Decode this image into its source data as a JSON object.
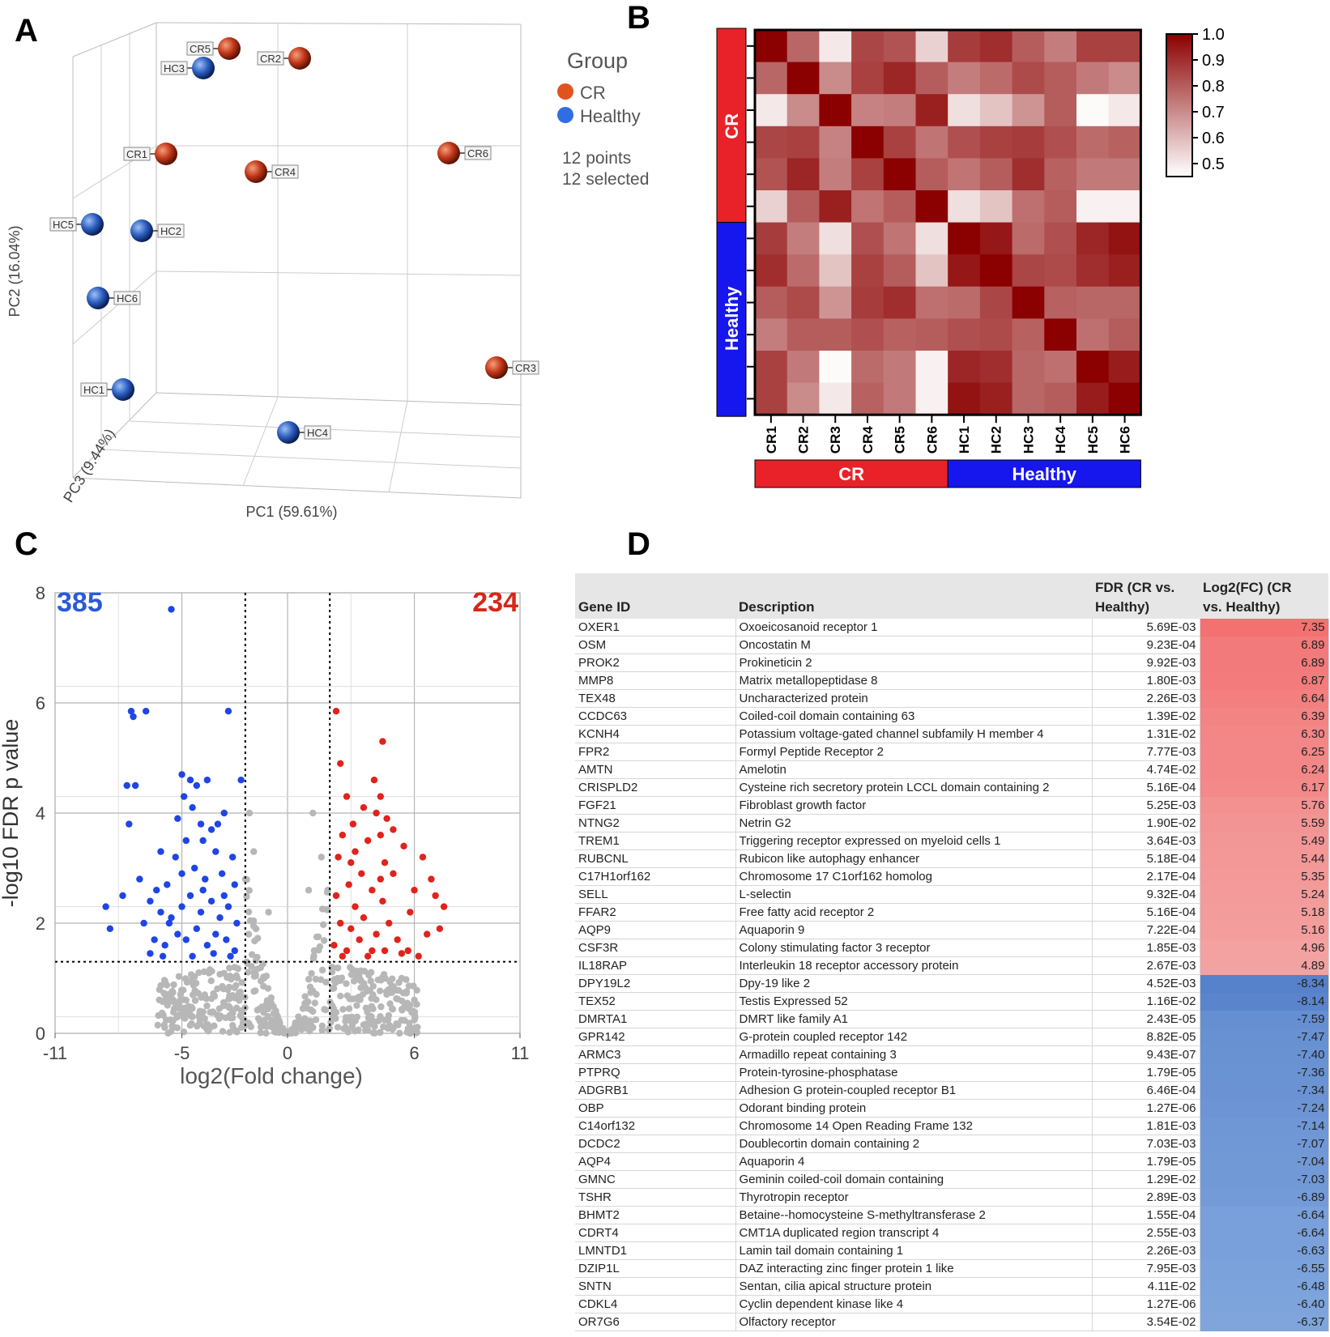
{
  "panel_letters": {
    "a": "A",
    "b": "B",
    "c": "C",
    "d": "D"
  },
  "colors": {
    "cr": "#c9391c",
    "healthy": "#2f5fbf",
    "heat_high": "#8b0000",
    "heat_low": "#ffffff",
    "bar_cr": "#e82228",
    "bar_healthy": "#1616ee",
    "up": "#e0231b",
    "down": "#1f45e6",
    "ns": "#b7b7b7",
    "fc_pos": "#f08080",
    "fc_neg": "#6f9bd6"
  },
  "chart_data": [
    {
      "type": "scatter",
      "panel": "A",
      "title": "",
      "xlabel": "PC1 (59.61%)",
      "ylabel": "PC2 (16.04%)",
      "zlabel": "PC3 (9.44%)",
      "legend": {
        "title": "Group",
        "entries": [
          "CR",
          "Healthy"
        ],
        "count_text": "12 points",
        "selected_text": "12 selected",
        "placement": "right"
      },
      "points": [
        {
          "label": "CR1",
          "group": "CR"
        },
        {
          "label": "CR2",
          "group": "CR"
        },
        {
          "label": "CR3",
          "group": "CR"
        },
        {
          "label": "CR4",
          "group": "CR"
        },
        {
          "label": "CR5",
          "group": "CR"
        },
        {
          "label": "CR6",
          "group": "CR"
        },
        {
          "label": "HC1",
          "group": "Healthy"
        },
        {
          "label": "HC2",
          "group": "Healthy"
        },
        {
          "label": "HC3",
          "group": "Healthy"
        },
        {
          "label": "HC4",
          "group": "Healthy"
        },
        {
          "label": "HC5",
          "group": "Healthy"
        },
        {
          "label": "HC6",
          "group": "Healthy"
        }
      ]
    },
    {
      "type": "heatmap",
      "panel": "B",
      "row_labels": [
        "CR1",
        "CR2",
        "CR3",
        "CR4",
        "CR5",
        "CR6",
        "HC1",
        "HC2",
        "HC3",
        "HC4",
        "HC5",
        "HC6"
      ],
      "col_labels": [
        "CR1",
        "CR2",
        "CR3",
        "CR4",
        "CR5",
        "CR6",
        "HC1",
        "HC2",
        "HC3",
        "HC4",
        "HC5",
        "HC6"
      ],
      "group_labels": [
        "CR",
        "Healthy"
      ],
      "colorbar": {
        "min": 0.45,
        "max": 1.0,
        "ticks": [
          "1.0",
          "0.9",
          "0.8",
          "0.7",
          "0.6",
          "0.5"
        ]
      },
      "values": [
        [
          1.0,
          0.78,
          0.5,
          0.85,
          0.82,
          0.55,
          0.87,
          0.9,
          0.8,
          0.73,
          0.86,
          0.86
        ],
        [
          0.78,
          1.0,
          0.7,
          0.86,
          0.92,
          0.8,
          0.73,
          0.77,
          0.84,
          0.8,
          0.74,
          0.7
        ],
        [
          0.5,
          0.7,
          1.0,
          0.72,
          0.73,
          0.93,
          0.52,
          0.58,
          0.68,
          0.8,
          0.46,
          0.5
        ],
        [
          0.85,
          0.86,
          0.72,
          1.0,
          0.86,
          0.75,
          0.83,
          0.86,
          0.87,
          0.83,
          0.77,
          0.79
        ],
        [
          0.82,
          0.92,
          0.73,
          0.86,
          1.0,
          0.8,
          0.75,
          0.8,
          0.9,
          0.79,
          0.74,
          0.74
        ],
        [
          0.55,
          0.8,
          0.93,
          0.75,
          0.8,
          1.0,
          0.52,
          0.58,
          0.76,
          0.8,
          0.48,
          0.48
        ],
        [
          0.87,
          0.73,
          0.52,
          0.83,
          0.75,
          0.52,
          1.0,
          0.95,
          0.77,
          0.83,
          0.92,
          0.96
        ],
        [
          0.9,
          0.77,
          0.58,
          0.86,
          0.8,
          0.58,
          0.95,
          1.0,
          0.85,
          0.84,
          0.9,
          0.93
        ],
        [
          0.8,
          0.84,
          0.68,
          0.87,
          0.9,
          0.76,
          0.77,
          0.85,
          1.0,
          0.79,
          0.78,
          0.78
        ],
        [
          0.73,
          0.8,
          0.8,
          0.83,
          0.79,
          0.8,
          0.83,
          0.84,
          0.79,
          1.0,
          0.76,
          0.8
        ],
        [
          0.86,
          0.74,
          0.46,
          0.77,
          0.74,
          0.48,
          0.92,
          0.9,
          0.78,
          0.76,
          1.0,
          0.94
        ],
        [
          0.86,
          0.7,
          0.5,
          0.79,
          0.74,
          0.48,
          0.96,
          0.93,
          0.78,
          0.8,
          0.94,
          1.0
        ]
      ]
    },
    {
      "type": "scatter",
      "panel": "C",
      "xlabel": "log2(Fold change)",
      "ylabel": "-log10 FDR p value",
      "xlim": [
        -11,
        11
      ],
      "ylim": [
        0,
        8
      ],
      "xticks": [
        "-11",
        "-5",
        "0",
        "6",
        "11"
      ],
      "yticks": [
        "0",
        "2",
        "4",
        "6",
        "8"
      ],
      "thresholds": {
        "fc": [
          -2,
          2
        ],
        "fdr_log": 1.3
      },
      "down_count": "385",
      "up_count": "234",
      "series": [
        {
          "name": "down",
          "points": [
            [
              -5.5,
              7.7
            ],
            [
              -7.4,
              5.85
            ],
            [
              -7.3,
              5.75
            ],
            [
              -6.7,
              5.85
            ],
            [
              -2.8,
              5.85
            ],
            [
              -7.6,
              4.5
            ],
            [
              -7.2,
              4.5
            ],
            [
              -5.0,
              4.7
            ],
            [
              -4.6,
              4.6
            ],
            [
              -4.3,
              4.5
            ],
            [
              -3.8,
              4.6
            ],
            [
              -2.2,
              4.6
            ],
            [
              -4.9,
              4.3
            ],
            [
              -4.5,
              4.1
            ],
            [
              -3.0,
              4.0
            ],
            [
              -5.2,
              3.9
            ],
            [
              -4.1,
              3.8
            ],
            [
              -3.6,
              3.7
            ],
            [
              -3.3,
              3.8
            ],
            [
              -7.5,
              3.8
            ],
            [
              -4.8,
              3.5
            ],
            [
              -6.0,
              3.3
            ],
            [
              -5.3,
              3.2
            ],
            [
              -4.0,
              3.5
            ],
            [
              -3.4,
              3.3
            ],
            [
              -2.6,
              3.2
            ],
            [
              -8.6,
              2.3
            ],
            [
              -8.4,
              1.9
            ],
            [
              -7.0,
              2.8
            ],
            [
              -7.8,
              2.5
            ],
            [
              -6.5,
              2.4
            ],
            [
              -6.2,
              2.6
            ],
            [
              -5.7,
              2.7
            ],
            [
              -5.0,
              2.9
            ],
            [
              -4.4,
              3.0
            ],
            [
              -3.9,
              2.8
            ],
            [
              -3.1,
              2.9
            ],
            [
              -2.5,
              2.7
            ],
            [
              -6.8,
              2.0
            ],
            [
              -6.0,
              2.2
            ],
            [
              -5.5,
              2.1
            ],
            [
              -5.0,
              2.3
            ],
            [
              -4.6,
              2.5
            ],
            [
              -4.1,
              2.2
            ],
            [
              -3.6,
              2.4
            ],
            [
              -3.2,
              2.1
            ],
            [
              -2.8,
              2.3
            ],
            [
              -2.4,
              2.0
            ],
            [
              -6.3,
              1.7
            ],
            [
              -5.8,
              1.6
            ],
            [
              -5.2,
              1.8
            ],
            [
              -4.8,
              1.7
            ],
            [
              -4.3,
              1.9
            ],
            [
              -3.8,
              1.6
            ],
            [
              -3.4,
              1.8
            ],
            [
              -2.9,
              1.7
            ],
            [
              -2.5,
              1.5
            ],
            [
              -6.5,
              1.45
            ],
            [
              -5.9,
              1.4
            ],
            [
              -4.5,
              1.4
            ],
            [
              -3.5,
              1.45
            ],
            [
              -2.7,
              1.4
            ],
            [
              -5.6,
              2.0
            ],
            [
              -4.0,
              2.6
            ],
            [
              -3.0,
              2.5
            ]
          ]
        },
        {
          "name": "up",
          "points": [
            [
              2.3,
              5.85
            ],
            [
              4.5,
              5.3
            ],
            [
              2.5,
              4.9
            ],
            [
              4.1,
              4.6
            ],
            [
              4.4,
              4.3
            ],
            [
              2.8,
              4.3
            ],
            [
              3.6,
              4.1
            ],
            [
              4.2,
              4.0
            ],
            [
              4.7,
              3.9
            ],
            [
              5.0,
              3.7
            ],
            [
              3.1,
              3.8
            ],
            [
              4.4,
              3.6
            ],
            [
              3.8,
              3.5
            ],
            [
              2.6,
              3.6
            ],
            [
              6.4,
              3.2
            ],
            [
              5.5,
              3.4
            ],
            [
              3.2,
              3.3
            ],
            [
              2.4,
              3.2
            ],
            [
              4.6,
              3.1
            ],
            [
              5.0,
              2.9
            ],
            [
              6.8,
              2.8
            ],
            [
              7.0,
              2.5
            ],
            [
              6.0,
              2.6
            ],
            [
              5.8,
              2.2
            ],
            [
              3.5,
              2.9
            ],
            [
              2.9,
              2.7
            ],
            [
              4.0,
              2.6
            ],
            [
              2.3,
              2.5
            ],
            [
              3.2,
              2.3
            ],
            [
              4.5,
              2.4
            ],
            [
              7.4,
              2.3
            ],
            [
              7.2,
              1.9
            ],
            [
              6.6,
              1.8
            ],
            [
              5.7,
              1.5
            ],
            [
              2.5,
              2.0
            ],
            [
              3.0,
              1.9
            ],
            [
              3.6,
              2.1
            ],
            [
              4.2,
              1.8
            ],
            [
              4.8,
              2.0
            ],
            [
              5.2,
              1.7
            ],
            [
              2.2,
              1.6
            ],
            [
              2.8,
              1.5
            ],
            [
              3.4,
              1.7
            ],
            [
              4.0,
              1.5
            ],
            [
              4.6,
              1.5
            ],
            [
              5.4,
              1.45
            ],
            [
              6.2,
              1.4
            ],
            [
              2.6,
              1.4
            ],
            [
              3.8,
              1.4
            ],
            [
              4.4,
              2.8
            ],
            [
              3.0,
              3.1
            ]
          ]
        }
      ]
    }
  ],
  "pca_axis_labels": {
    "pc1": "PC1 (59.61%)",
    "pc2": "PC2 (16.04%)",
    "pc3": "PC3 (9.44%)"
  },
  "table": {
    "headers": {
      "gene_id": "Gene ID",
      "description": "Description",
      "fdr_line1": "FDR (CR vs.",
      "fdr_line2": "Healthy)",
      "fc_line1": "Log2(FC) (CR",
      "fc_line2": "vs. Healthy)"
    },
    "rows": [
      {
        "gene": "OXER1",
        "desc": "Oxoeicosanoid receptor 1",
        "fdr": "5.69E-03",
        "fc": "7.35"
      },
      {
        "gene": "OSM",
        "desc": "Oncostatin M",
        "fdr": "9.23E-04",
        "fc": "6.89"
      },
      {
        "gene": "PROK2",
        "desc": "Prokineticin 2",
        "fdr": "9.92E-03",
        "fc": "6.89"
      },
      {
        "gene": "MMP8",
        "desc": "Matrix metallopeptidase 8",
        "fdr": "1.80E-03",
        "fc": "6.87"
      },
      {
        "gene": "TEX48",
        "desc": "Uncharacterized protein",
        "fdr": "2.26E-03",
        "fc": "6.64"
      },
      {
        "gene": "CCDC63",
        "desc": "Coiled-coil domain containing 63",
        "fdr": "1.39E-02",
        "fc": "6.39"
      },
      {
        "gene": "KCNH4",
        "desc": "Potassium voltage-gated channel subfamily H member 4",
        "fdr": "1.31E-02",
        "fc": "6.30"
      },
      {
        "gene": "FPR2",
        "desc": "Formyl Peptide Receptor 2",
        "fdr": "7.77E-03",
        "fc": "6.25"
      },
      {
        "gene": "AMTN",
        "desc": "Amelotin",
        "fdr": "4.74E-02",
        "fc": "6.24"
      },
      {
        "gene": "CRISPLD2",
        "desc": "Cysteine rich secretory protein LCCL domain containing 2",
        "fdr": "5.16E-04",
        "fc": "6.17"
      },
      {
        "gene": "FGF21",
        "desc": "Fibroblast growth factor",
        "fdr": "5.25E-03",
        "fc": "5.76"
      },
      {
        "gene": "NTNG2",
        "desc": "Netrin G2",
        "fdr": "1.90E-02",
        "fc": "5.59"
      },
      {
        "gene": "TREM1",
        "desc": "Triggering receptor expressed on myeloid cells 1",
        "fdr": "3.64E-03",
        "fc": "5.49"
      },
      {
        "gene": "RUBCNL",
        "desc": "Rubicon like autophagy enhancer",
        "fdr": "5.18E-04",
        "fc": "5.44"
      },
      {
        "gene": "C17H1orf162",
        "desc": "Chromosome 17 C1orf162 homolog",
        "fdr": "2.17E-04",
        "fc": "5.35"
      },
      {
        "gene": "SELL",
        "desc": "L-selectin",
        "fdr": "9.32E-04",
        "fc": "5.24"
      },
      {
        "gene": "FFAR2",
        "desc": "Free fatty acid receptor 2",
        "fdr": "5.16E-04",
        "fc": "5.18"
      },
      {
        "gene": "AQP9",
        "desc": "Aquaporin 9",
        "fdr": "7.22E-04",
        "fc": "5.16"
      },
      {
        "gene": "CSF3R",
        "desc": "Colony stimulating factor 3 receptor",
        "fdr": "1.85E-03",
        "fc": "4.96"
      },
      {
        "gene": "IL18RAP",
        "desc": "Interleukin 18 receptor accessory protein",
        "fdr": "2.67E-03",
        "fc": "4.89"
      },
      {
        "gene": "DPY19L2",
        "desc": "Dpy-19 like 2",
        "fdr": "4.52E-03",
        "fc": "-8.34"
      },
      {
        "gene": "TEX52",
        "desc": "Testis Expressed 52",
        "fdr": "1.16E-02",
        "fc": "-8.14"
      },
      {
        "gene": "DMRTA1",
        "desc": "DMRT like family A1",
        "fdr": "2.43E-05",
        "fc": "-7.59"
      },
      {
        "gene": "GPR142",
        "desc": "G-protein coupled receptor 142",
        "fdr": "8.82E-05",
        "fc": "-7.47"
      },
      {
        "gene": "ARMC3",
        "desc": "Armadillo repeat containing 3",
        "fdr": "9.43E-07",
        "fc": "-7.40"
      },
      {
        "gene": "PTPRQ",
        "desc": "Protein-tyrosine-phosphatase",
        "fdr": "1.79E-05",
        "fc": "-7.36"
      },
      {
        "gene": "ADGRB1",
        "desc": "Adhesion G protein-coupled receptor B1",
        "fdr": "6.46E-04",
        "fc": "-7.34"
      },
      {
        "gene": "OBP",
        "desc": "Odorant binding protein",
        "fdr": "1.27E-06",
        "fc": "-7.24"
      },
      {
        "gene": "C14orf132",
        "desc": "Chromosome 14 Open Reading Frame 132",
        "fdr": "1.81E-03",
        "fc": "-7.14"
      },
      {
        "gene": "DCDC2",
        "desc": "Doublecortin domain containing 2",
        "fdr": "7.03E-03",
        "fc": "-7.07"
      },
      {
        "gene": "AQP4",
        "desc": "Aquaporin 4",
        "fdr": "1.79E-05",
        "fc": "-7.04"
      },
      {
        "gene": "GMNC",
        "desc": "Geminin coiled-coil domain containing",
        "fdr": "1.29E-02",
        "fc": "-7.03"
      },
      {
        "gene": "TSHR",
        "desc": "Thyrotropin receptor",
        "fdr": "2.89E-03",
        "fc": "-6.89"
      },
      {
        "gene": "BHMT2",
        "desc": "Betaine--homocysteine S-methyltransferase 2",
        "fdr": "1.55E-04",
        "fc": "-6.64"
      },
      {
        "gene": "CDRT4",
        "desc": "CMT1A duplicated region transcript 4",
        "fdr": "2.55E-03",
        "fc": "-6.64"
      },
      {
        "gene": "LMNTD1",
        "desc": "Lamin tail domain containing 1",
        "fdr": "2.26E-03",
        "fc": "-6.63"
      },
      {
        "gene": "DZIP1L",
        "desc": "DAZ interacting zinc finger protein 1 like",
        "fdr": "7.95E-03",
        "fc": "-6.55"
      },
      {
        "gene": "SNTN",
        "desc": "Sentan, cilia apical structure protein",
        "fdr": "4.11E-02",
        "fc": "-6.48"
      },
      {
        "gene": "CDKL4",
        "desc": "Cyclin dependent kinase like 4",
        "fdr": "1.27E-06",
        "fc": "-6.40"
      },
      {
        "gene": "OR7G6",
        "desc": "Olfactory receptor",
        "fdr": "3.54E-02",
        "fc": "-6.37"
      }
    ]
  }
}
